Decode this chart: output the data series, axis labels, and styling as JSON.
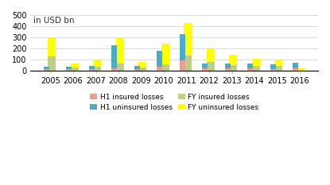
{
  "years": [
    "2005",
    "2006",
    "2007",
    "2008",
    "2009",
    "2010",
    "2011",
    "2012",
    "2013",
    "2014",
    "2015",
    "2016"
  ],
  "h1_insured": [
    15,
    12,
    15,
    20,
    15,
    35,
    95,
    20,
    20,
    18,
    15,
    20
  ],
  "h1_uninsured": [
    20,
    25,
    30,
    210,
    30,
    145,
    235,
    45,
    45,
    45,
    40,
    50
  ],
  "fy_insured": [
    130,
    25,
    35,
    65,
    25,
    55,
    135,
    75,
    50,
    40,
    40,
    0
  ],
  "fy_uninsured": [
    165,
    40,
    55,
    230,
    50,
    190,
    295,
    115,
    90,
    65,
    55,
    20
  ],
  "colors": {
    "h1_insured": "#e8a090",
    "h1_uninsured": "#4bacc6",
    "fy_insured": "#bfcf8a",
    "fy_uninsured": "#ffff00"
  },
  "ylim": [
    0,
    500
  ],
  "yticks": [
    0,
    100,
    200,
    300,
    400,
    500
  ],
  "annotation": "in USD bn",
  "legend_labels": [
    "H1 insured losses",
    "H1 uninsured losses",
    "FY insured losses",
    "FY uninsured losses"
  ],
  "background_color": "#ffffff",
  "grid_color": "#cccccc",
  "h1_bar_width": 0.25,
  "fy_bar_width": 0.35
}
